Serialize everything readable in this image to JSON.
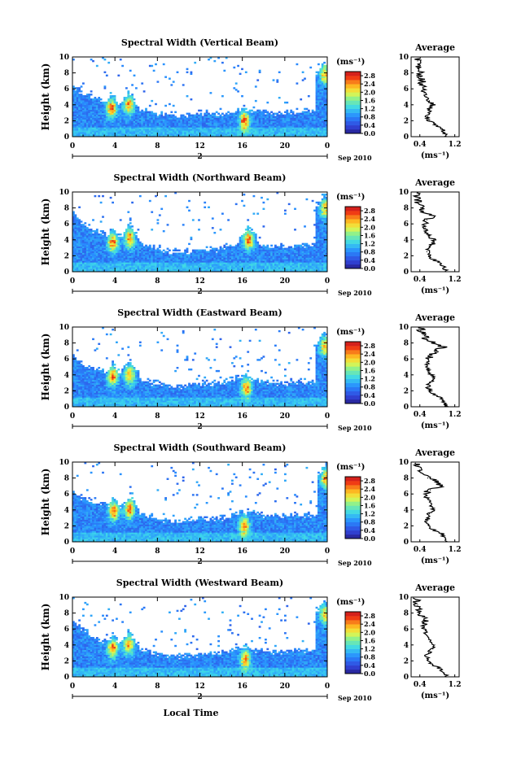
{
  "figure": {
    "x_axis_label": "Local Time",
    "units_label": "(ms⁻¹)",
    "date_label": "Sep 2010",
    "day_marker": "2",
    "average_title": "Average",
    "height_axis_label": "Height (km)"
  },
  "chart_data": [
    {
      "type": "heatmap",
      "title": "Spectral Width (Vertical Beam)",
      "xlabel": "",
      "ylabel": "Height (km)",
      "xlim": [
        0,
        24
      ],
      "ylim": [
        0,
        10
      ],
      "xticks": [
        "0",
        "4",
        "8",
        "12",
        "16",
        "20",
        "0"
      ],
      "yticks": [
        "0",
        "2",
        "4",
        "6",
        "8",
        "10"
      ],
      "colorbar": {
        "label": "(ms⁻¹)",
        "ticks": [
          "0.0",
          "0.4",
          "0.8",
          "1.2",
          "1.6",
          "2.0",
          "2.4",
          "2.8"
        ],
        "range": [
          0,
          3.0
        ]
      },
      "echo_top_km": [
        6.2,
        5.5,
        5,
        4.5,
        4.2,
        4.0,
        3.6,
        3.2,
        3.0,
        2.8,
        2.7,
        2.8,
        3.0,
        3.0,
        2.9,
        3.2,
        3.5,
        3.4,
        3.2,
        3.0,
        3.0,
        3.2,
        3.3,
        3.2
      ],
      "hotspots": [
        {
          "t": 3.7,
          "h": 3.6,
          "v": 2.6
        },
        {
          "t": 5.3,
          "h": 4.0,
          "v": 2.5
        },
        {
          "t": 16.2,
          "h": 2.0,
          "v": 2.7
        },
        {
          "t": 23.8,
          "h": 7.8,
          "v": 2.3
        }
      ],
      "average_profile": {
        "xlabel": "(ms⁻¹)",
        "xticks": [
          "0.4",
          "1.2"
        ],
        "xlim": [
          0.2,
          1.3
        ],
        "yticks": [
          "0",
          "2",
          "4",
          "6",
          "8",
          "10"
        ],
        "heights": [
          0,
          0.5,
          1,
          1.5,
          2,
          2.5,
          3,
          3.5,
          4,
          4.5,
          5,
          5.5,
          6,
          6.5,
          7,
          7.5,
          8,
          8.5,
          9,
          9.5
        ],
        "values": [
          1.0,
          0.98,
          0.92,
          0.75,
          0.62,
          0.58,
          0.6,
          0.62,
          0.7,
          0.62,
          0.55,
          0.5,
          0.48,
          0.46,
          0.45,
          0.42,
          0.4,
          0.38,
          0.36,
          0.35
        ]
      }
    },
    {
      "type": "heatmap",
      "title": "Spectral Width (Northward Beam)",
      "xlabel": "",
      "ylabel": "Height (km)",
      "xlim": [
        0,
        24
      ],
      "ylim": [
        0,
        10
      ],
      "xticks": [
        "0",
        "4",
        "8",
        "12",
        "16",
        "20",
        "0"
      ],
      "yticks": [
        "0",
        "2",
        "4",
        "6",
        "8",
        "10"
      ],
      "colorbar": {
        "label": "(ms⁻¹)",
        "ticks": [
          "0.0",
          "0.4",
          "0.8",
          "1.2",
          "1.6",
          "2.0",
          "2.4",
          "2.8"
        ],
        "range": [
          0,
          3.0
        ]
      },
      "echo_top_km": [
        7.5,
        6.0,
        5.2,
        4.8,
        4.6,
        4.3,
        3.8,
        3.4,
        3.0,
        2.6,
        2.5,
        2.6,
        2.8,
        2.8,
        2.9,
        3.4,
        3.8,
        3.6,
        3.3,
        3.2,
        3.2,
        3.3,
        3.4,
        3.3
      ],
      "hotspots": [
        {
          "t": 3.8,
          "h": 3.7,
          "v": 2.6
        },
        {
          "t": 5.4,
          "h": 4.2,
          "v": 2.5
        },
        {
          "t": 16.6,
          "h": 4.0,
          "v": 2.6
        },
        {
          "t": 23.8,
          "h": 8.0,
          "v": 2.3
        }
      ],
      "average_profile": {
        "xlabel": "(ms⁻¹)",
        "xticks": [
          "0.4",
          "1.2"
        ],
        "xlim": [
          0.2,
          1.3
        ],
        "yticks": [
          "0",
          "2",
          "4",
          "6",
          "8",
          "10"
        ],
        "heights": [
          0,
          0.5,
          1,
          1.5,
          2,
          2.5,
          3,
          3.5,
          4,
          4.5,
          5,
          5.5,
          6,
          6.5,
          7,
          7.5,
          8,
          8.5,
          9,
          9.5
        ],
        "values": [
          1.0,
          0.96,
          0.9,
          0.72,
          0.6,
          0.56,
          0.62,
          0.7,
          0.72,
          0.6,
          0.55,
          0.52,
          0.5,
          0.56,
          0.72,
          0.48,
          0.42,
          0.38,
          0.35,
          0.33
        ]
      }
    },
    {
      "type": "heatmap",
      "title": "Spectral Width (Eastward Beam)",
      "xlabel": "",
      "ylabel": "Height (km)",
      "xlim": [
        0,
        24
      ],
      "ylim": [
        0,
        10
      ],
      "xticks": [
        "0",
        "4",
        "8",
        "12",
        "16",
        "20",
        "0"
      ],
      "yticks": [
        "0",
        "2",
        "4",
        "6",
        "8",
        "10"
      ],
      "colorbar": {
        "label": "(ms⁻¹)",
        "ticks": [
          "0.0",
          "0.4",
          "0.8",
          "1.2",
          "1.6",
          "2.0",
          "2.4",
          "2.8"
        ],
        "range": [
          0,
          3.0
        ]
      },
      "echo_top_km": [
        6.5,
        5.2,
        4.8,
        4.5,
        4.4,
        4.2,
        3.6,
        3.2,
        2.9,
        2.7,
        2.6,
        2.8,
        3.0,
        3.0,
        3.1,
        3.5,
        3.8,
        3.5,
        3.2,
        3.0,
        3.0,
        3.1,
        3.2,
        3.2
      ],
      "hotspots": [
        {
          "t": 3.8,
          "h": 3.8,
          "v": 2.6
        },
        {
          "t": 5.4,
          "h": 4.0,
          "v": 2.4
        },
        {
          "t": 16.4,
          "h": 2.4,
          "v": 2.6
        },
        {
          "t": 23.8,
          "h": 7.6,
          "v": 2.4
        }
      ],
      "average_profile": {
        "xlabel": "(ms⁻¹)",
        "xticks": [
          "0.4",
          "1.2"
        ],
        "xlim": [
          0.2,
          1.3
        ],
        "yticks": [
          "0",
          "2",
          "4",
          "6",
          "8",
          "10"
        ],
        "heights": [
          0,
          0.5,
          1,
          1.5,
          2,
          2.5,
          3,
          3.5,
          4,
          4.5,
          5,
          5.5,
          6,
          6.5,
          7,
          7.5,
          8,
          8.5,
          9,
          9.5
        ],
        "values": [
          1.0,
          0.96,
          0.9,
          0.74,
          0.62,
          0.58,
          0.64,
          0.7,
          0.66,
          0.58,
          0.56,
          0.55,
          0.6,
          0.68,
          0.75,
          0.95,
          0.7,
          0.55,
          0.48,
          0.42
        ]
      }
    },
    {
      "type": "heatmap",
      "title": "Spectral Width (Southward Beam)",
      "xlabel": "",
      "ylabel": "Height (km)",
      "xlim": [
        0,
        24
      ],
      "ylim": [
        0,
        10
      ],
      "xticks": [
        "0",
        "4",
        "8",
        "12",
        "16",
        "20",
        "0"
      ],
      "yticks": [
        "0",
        "2",
        "4",
        "6",
        "8",
        "10"
      ],
      "colorbar": {
        "label": "(ms⁻¹)",
        "ticks": [
          "0.0",
          "0.4",
          "0.8",
          "1.2",
          "1.6",
          "2.0",
          "2.4",
          "2.8"
        ],
        "range": [
          0,
          3.0
        ]
      },
      "echo_top_km": [
        6.0,
        5.5,
        5.0,
        4.8,
        4.6,
        4.3,
        3.8,
        3.4,
        3.0,
        2.7,
        2.6,
        2.7,
        2.9,
        2.9,
        3.0,
        3.2,
        3.8,
        3.6,
        3.3,
        3.2,
        3.2,
        3.3,
        3.4,
        3.2
      ],
      "hotspots": [
        {
          "t": 3.9,
          "h": 3.9,
          "v": 2.6
        },
        {
          "t": 5.4,
          "h": 4.1,
          "v": 2.5
        },
        {
          "t": 16.2,
          "h": 2.0,
          "v": 2.5
        },
        {
          "t": 23.9,
          "h": 8.0,
          "v": 2.5
        }
      ],
      "average_profile": {
        "xlabel": "(ms⁻¹)",
        "xticks": [
          "0.4",
          "1.2"
        ],
        "xlim": [
          0.2,
          1.3
        ],
        "yticks": [
          "0",
          "2",
          "4",
          "6",
          "8",
          "10"
        ],
        "heights": [
          0,
          0.5,
          1,
          1.5,
          2,
          2.5,
          3,
          3.5,
          4,
          4.5,
          5,
          5.5,
          6,
          6.5,
          7,
          7.5,
          8,
          8.5,
          9,
          9.5
        ],
        "values": [
          1.0,
          0.98,
          0.92,
          0.72,
          0.6,
          0.56,
          0.58,
          0.62,
          0.72,
          0.66,
          0.62,
          0.55,
          0.5,
          0.64,
          0.9,
          0.82,
          0.58,
          0.48,
          0.4,
          0.36
        ]
      }
    },
    {
      "type": "heatmap",
      "title": "Spectral Width (Westward Beam)",
      "xlabel": "Local Time",
      "ylabel": "Height (km)",
      "xlim": [
        0,
        24
      ],
      "ylim": [
        0,
        10
      ],
      "xticks": [
        "0",
        "4",
        "8",
        "12",
        "16",
        "20",
        "0"
      ],
      "yticks": [
        "0",
        "2",
        "4",
        "6",
        "8",
        "10"
      ],
      "colorbar": {
        "label": "(ms⁻¹)",
        "ticks": [
          "0.0",
          "0.4",
          "0.8",
          "1.2",
          "1.6",
          "2.0",
          "2.4",
          "2.8"
        ],
        "range": [
          0,
          3.0
        ]
      },
      "echo_top_km": [
        7.0,
        6.0,
        5.0,
        4.6,
        4.4,
        4.2,
        3.8,
        3.4,
        3.0,
        2.7,
        2.6,
        2.7,
        2.9,
        2.9,
        3.0,
        3.3,
        3.6,
        3.4,
        3.2,
        3.1,
        3.1,
        3.2,
        3.3,
        3.2
      ],
      "hotspots": [
        {
          "t": 3.8,
          "h": 3.6,
          "v": 2.5
        },
        {
          "t": 5.3,
          "h": 4.0,
          "v": 2.4
        },
        {
          "t": 16.3,
          "h": 2.2,
          "v": 2.5
        },
        {
          "t": 23.8,
          "h": 7.8,
          "v": 2.2
        }
      ],
      "average_profile": {
        "xlabel": "(ms⁻¹)",
        "xticks": [
          "0.4",
          "1.2"
        ],
        "xlim": [
          0.2,
          1.3
        ],
        "yticks": [
          "0",
          "2",
          "4",
          "6",
          "8",
          "10"
        ],
        "heights": [
          0,
          0.5,
          1,
          1.5,
          2,
          2.5,
          3,
          3.5,
          4,
          4.5,
          5,
          5.5,
          6,
          6.5,
          7,
          7.5,
          8,
          8.5,
          9,
          9.5
        ],
        "values": [
          1.0,
          0.96,
          0.88,
          0.7,
          0.58,
          0.55,
          0.6,
          0.7,
          0.74,
          0.64,
          0.58,
          0.52,
          0.5,
          0.48,
          0.52,
          0.46,
          0.4,
          0.38,
          0.35,
          0.33
        ]
      }
    }
  ]
}
